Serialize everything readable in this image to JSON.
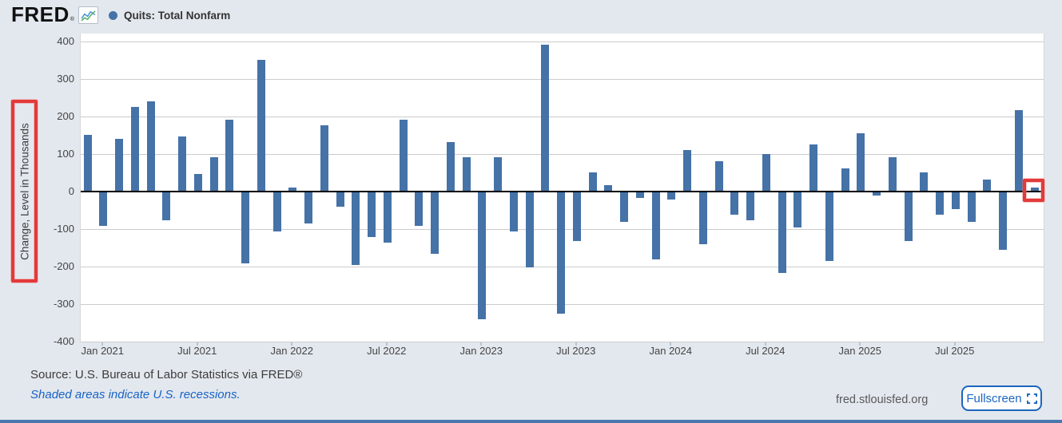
{
  "header": {
    "brand": "FRED",
    "registered_mark": "®",
    "legend": {
      "label": "Quits: Total Nonfarm"
    }
  },
  "chart_data": {
    "type": "bar",
    "title": "Quits: Total Nonfarm",
    "xlabel": "",
    "ylabel": "Change, Level in Thousands",
    "ylim": [
      -400,
      400
    ],
    "yticks": [
      400,
      300,
      200,
      100,
      0,
      -100,
      -200,
      -300,
      -400
    ],
    "grid": true,
    "legend_position": "top-left",
    "bar_color": "#4572a7",
    "x": [
      "Dec 2020",
      "Jan 2021",
      "Feb 2021",
      "Mar 2021",
      "Apr 2021",
      "May 2021",
      "Jun 2021",
      "Jul 2021",
      "Aug 2021",
      "Sep 2021",
      "Oct 2021",
      "Nov 2021",
      "Dec 2021",
      "Jan 2022",
      "Feb 2022",
      "Mar 2022",
      "Apr 2022",
      "May 2022",
      "Jun 2022",
      "Jul 2022",
      "Aug 2022",
      "Sep 2022",
      "Oct 2022",
      "Nov 2022",
      "Dec 2022",
      "Jan 2023",
      "Feb 2023",
      "Mar 2023",
      "Apr 2023",
      "May 2023",
      "Jun 2023",
      "Jul 2023",
      "Aug 2023",
      "Sep 2023",
      "Oct 2023",
      "Nov 2023",
      "Dec 2023",
      "Jan 2024",
      "Feb 2024",
      "Mar 2024",
      "Apr 2024",
      "May 2024",
      "Jun 2024",
      "Jul 2024",
      "Aug 2024",
      "Sep 2024",
      "Oct 2024",
      "Nov 2024",
      "Dec 2024",
      "Jan 2025",
      "Feb 2025",
      "Mar 2025",
      "Apr 2025",
      "May 2025",
      "Jun 2025",
      "Jul 2025",
      "Aug 2025",
      "Sep 2025",
      "Oct 2025",
      "Nov 2025",
      "Dec 2025"
    ],
    "values": [
      150,
      -90,
      140,
      225,
      240,
      -75,
      145,
      45,
      90,
      190,
      -190,
      350,
      -105,
      10,
      -85,
      175,
      -40,
      -195,
      -120,
      -135,
      190,
      -90,
      -165,
      130,
      90,
      -340,
      90,
      -105,
      -200,
      390,
      -325,
      -130,
      50,
      15,
      -80,
      -15,
      -180,
      -20,
      110,
      -140,
      80,
      -60,
      -75,
      100,
      -215,
      -95,
      125,
      -185,
      60,
      155,
      -10,
      90,
      -130,
      50,
      -60,
      -45,
      -80,
      30,
      -155,
      215,
      10
    ],
    "xticks": [
      {
        "label": "Jan 2021",
        "month_index": 1
      },
      {
        "label": "Jul 2021",
        "month_index": 7
      },
      {
        "label": "Jan 2022",
        "month_index": 13
      },
      {
        "label": "Jul 2022",
        "month_index": 19
      },
      {
        "label": "Jan 2023",
        "month_index": 25
      },
      {
        "label": "Jul 2023",
        "month_index": 31
      },
      {
        "label": "Jan 2024",
        "month_index": 37
      },
      {
        "label": "Jul 2024",
        "month_index": 43
      },
      {
        "label": "Jan 2025",
        "month_index": 49
      },
      {
        "label": "Jul 2025",
        "month_index": 55
      }
    ]
  },
  "annotations": [
    {
      "id": "ylabel-highlight",
      "type": "red-box",
      "target": "y-axis-label"
    },
    {
      "id": "last-bar-highlight",
      "type": "red-box",
      "target": "Dec 2025 bar"
    }
  ],
  "footer": {
    "source": "Source: U.S. Bureau of Labor Statistics via FRED®",
    "recession_note": "Shaded areas indicate U.S. recessions.",
    "watermark": "fred.stlouisfed.org",
    "fullscreen_label": "Fullscreen"
  },
  "colors": {
    "background": "#e3e8ee",
    "plot_background": "#ffffff",
    "bar": "#4572a7",
    "gridline": "#cccccc",
    "zero_line": "#000000",
    "highlight_box": "#e23a3a",
    "link_blue": "#1862c6",
    "button_blue": "#1a66c0"
  }
}
